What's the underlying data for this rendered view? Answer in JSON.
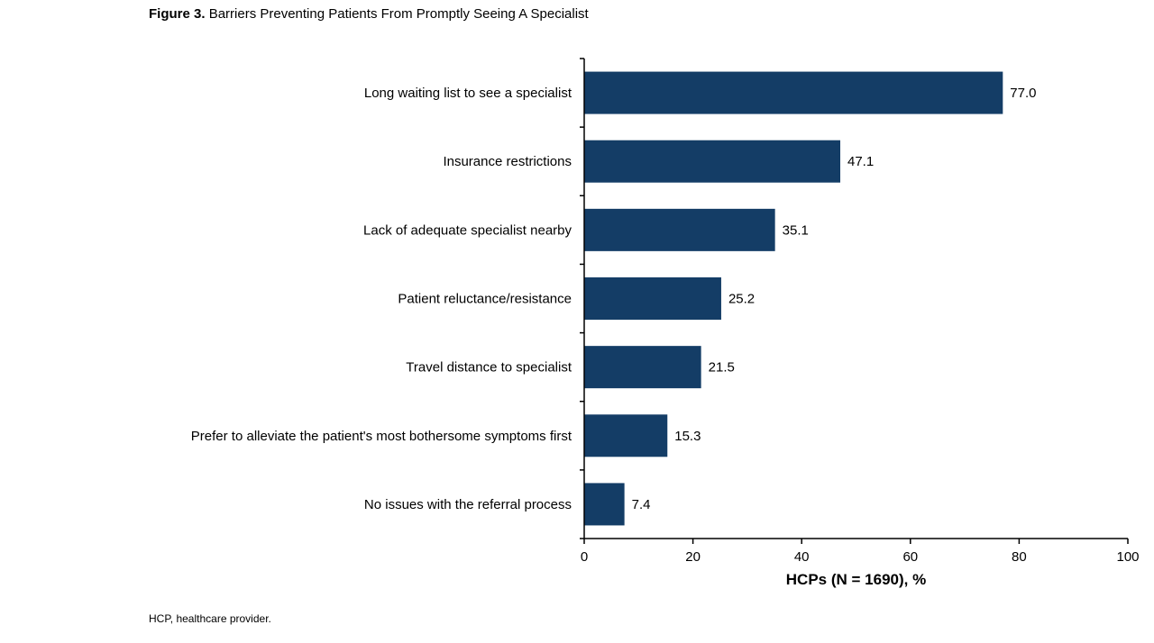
{
  "figure": {
    "title_lead": "Figure 3.",
    "title_text": "Barriers Preventing Patients From Promptly Seeing A Specialist",
    "footnote": "HCP, healthcare provider."
  },
  "colors": {
    "bar": "#143d66",
    "axis": "#000000",
    "text": "#000000"
  },
  "chart_data": {
    "type": "bar",
    "orientation": "horizontal",
    "title": "Barriers Preventing Patients From Promptly Seeing A Specialist",
    "xlabel": "HCPs (N = 1690), %",
    "ylabel": "",
    "xlim": [
      0,
      100
    ],
    "xticks": [
      0,
      20,
      40,
      60,
      80,
      100
    ],
    "grid": false,
    "legend": "none",
    "categories": [
      "Long waiting list to see a specialist",
      "Insurance restrictions",
      "Lack of adequate specialist nearby",
      "Patient reluctance/resistance",
      "Travel distance to specialist",
      "Prefer to alleviate the patient's most bothersome symptoms first",
      "No issues with the referral process"
    ],
    "values": [
      77.0,
      47.1,
      35.1,
      25.2,
      21.5,
      15.3,
      7.4
    ],
    "value_labels": [
      "77.0",
      "47.1",
      "35.1",
      "25.2",
      "21.5",
      "15.3",
      "7.4"
    ]
  }
}
